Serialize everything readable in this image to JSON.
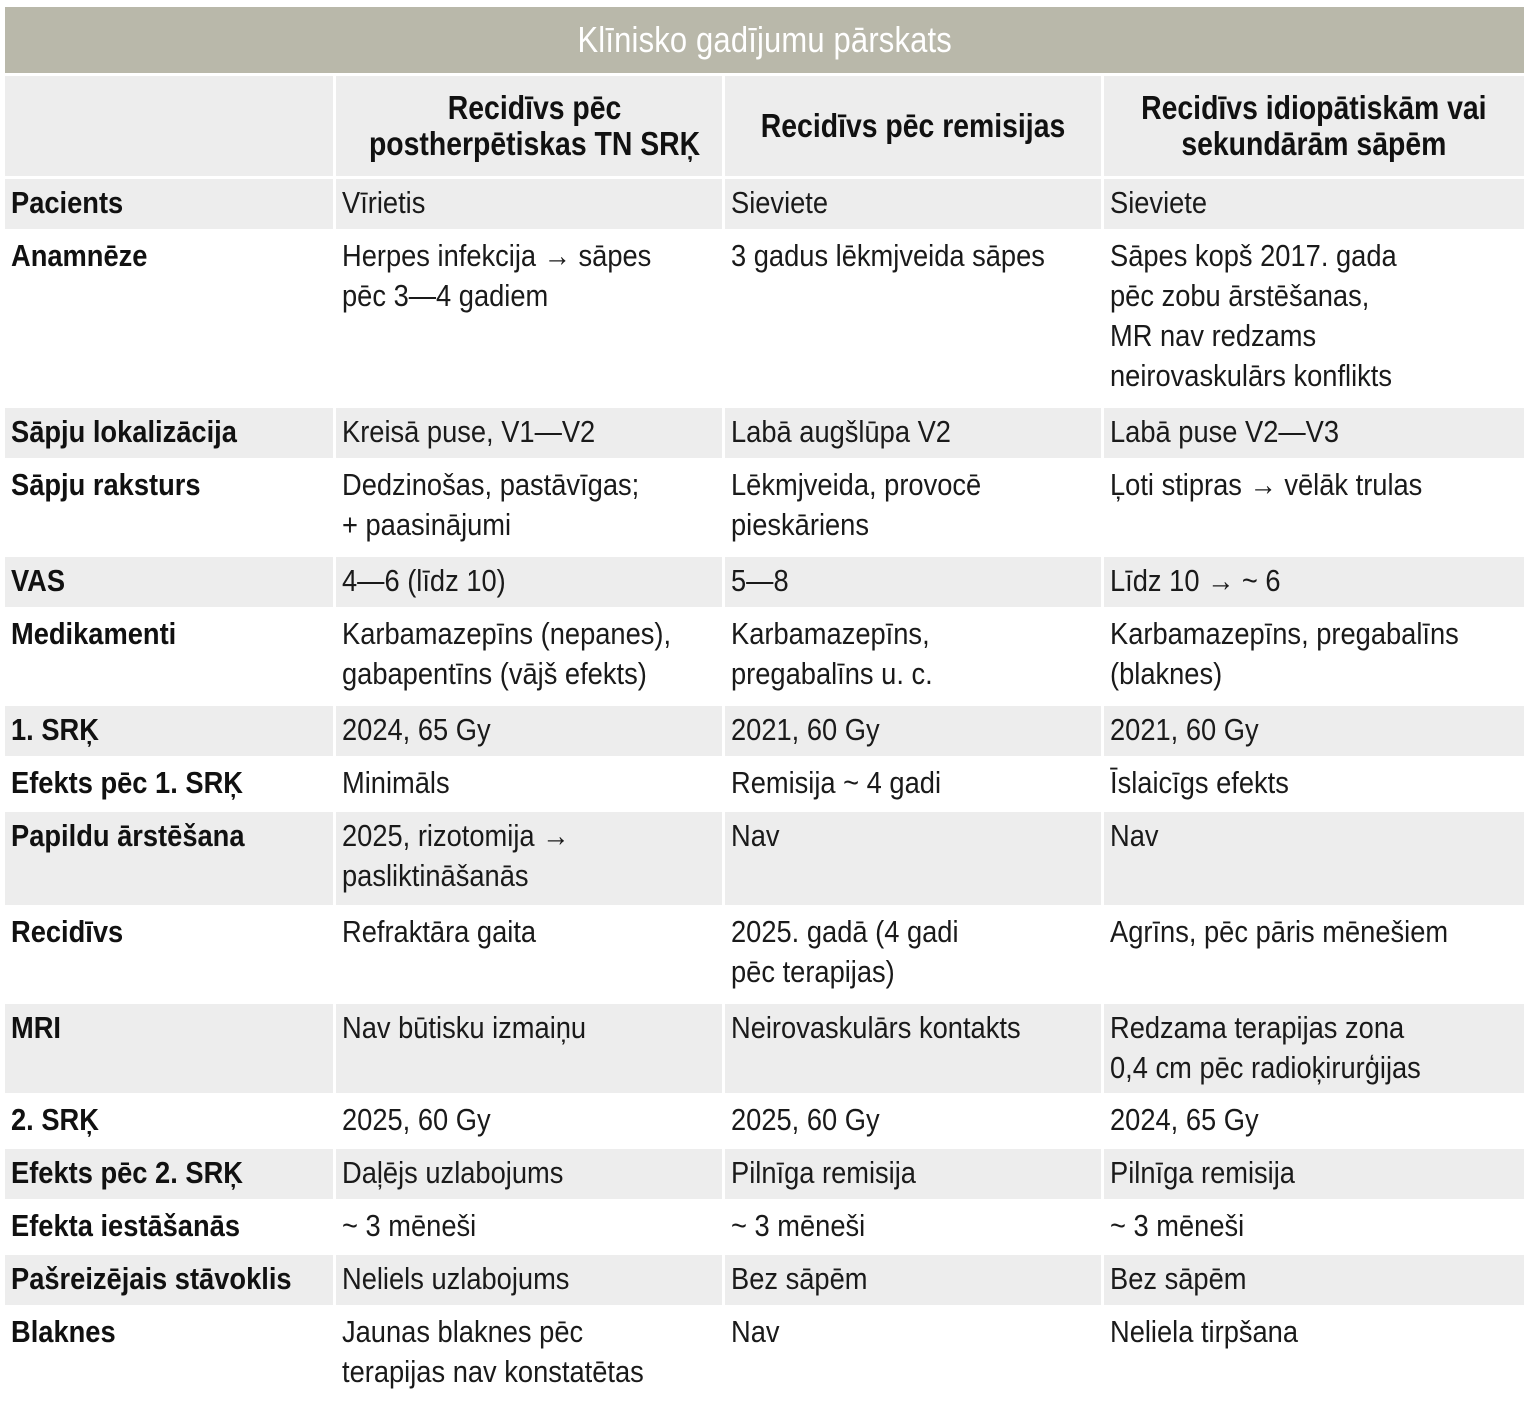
{
  "title": "Klīnisko gadījumu pārskats",
  "columns": [
    "",
    [
      "Recidīvs pēc",
      "postherpētiskas TN SRĶ"
    ],
    [
      "Recidīvs pēc remisijas"
    ],
    [
      "Recidīvs idiopātiskām vai",
      "sekundārām sāpēm"
    ]
  ],
  "rows": [
    {
      "label": "Pacients",
      "cells": [
        [
          "Vīrietis"
        ],
        [
          "Sieviete"
        ],
        [
          "Sieviete"
        ]
      ]
    },
    {
      "label": "Anamnēze",
      "cells": [
        [
          "Herpes infekcija → sāpes",
          "pēc 3—4 gadiem"
        ],
        [
          "3 gadus lēkmjveida sāpes"
        ],
        [
          "Sāpes kopš 2017. gada",
          "pēc zobu ārstēšanas,",
          "MR nav redzams",
          "neirovaskulārs konflikts"
        ]
      ]
    },
    {
      "label": "Sāpju lokalizācija",
      "cells": [
        [
          "Kreisā puse, V1—V2"
        ],
        [
          "Labā augšlūpa V2"
        ],
        [
          "Labā puse V2—V3"
        ]
      ]
    },
    {
      "label": "Sāpju raksturs",
      "cells": [
        [
          "Dedzinošas, pastāvīgas;",
          "+ paasinājumi"
        ],
        [
          "Lēkmjveida, provocē",
          "pieskāriens"
        ],
        [
          "Ļoti stipras → vēlāk trulas"
        ]
      ]
    },
    {
      "label": "VAS",
      "cells": [
        [
          "4—6 (līdz 10)"
        ],
        [
          "5—8"
        ],
        [
          "Līdz 10 → ~ 6"
        ]
      ]
    },
    {
      "label": "Medikamenti",
      "cells": [
        [
          "Karbamazepīns (nepanes),",
          "gabapentīns (vājš efekts)"
        ],
        [
          "Karbamazepīns,",
          "pregabalīns u. c."
        ],
        [
          "Karbamazepīns, pregabalīns",
          "(blaknes)"
        ]
      ]
    },
    {
      "label": "1. SRĶ",
      "cells": [
        [
          "2024, 65 Gy"
        ],
        [
          "2021, 60 Gy"
        ],
        [
          "2021, 60 Gy"
        ]
      ]
    },
    {
      "label": "Efekts pēc 1. SRĶ",
      "cells": [
        [
          "Minimāls"
        ],
        [
          "Remisija ~ 4 gadi"
        ],
        [
          "Īslaicīgs efekts"
        ]
      ]
    },
    {
      "label": "Papildu ārstēšana",
      "cells": [
        [
          "2025, rizotomija →",
          "pasliktināšanās"
        ],
        [
          "Nav"
        ],
        [
          "Nav"
        ]
      ]
    },
    {
      "label": "Recidīvs",
      "cells": [
        [
          "Refraktāra gaita"
        ],
        [
          "2025. gadā (4 gadi",
          "pēc terapijas)"
        ],
        [
          "Agrīns, pēc pāris mēnešiem"
        ]
      ]
    },
    {
      "label": "MRI",
      "cells": [
        [
          "Nav būtisku izmaiņu"
        ],
        [
          "Neirovaskulārs kontakts"
        ],
        [
          "Redzama terapijas zona",
          "0,4 cm pēc radioķirurģijas"
        ]
      ]
    },
    {
      "label": "2. SRĶ",
      "cells": [
        [
          "2025, 60 Gy"
        ],
        [
          "2025, 60 Gy"
        ],
        [
          "2024, 65 Gy"
        ]
      ]
    },
    {
      "label": "Efekts pēc 2. SRĶ",
      "cells": [
        [
          "Daļējs uzlabojums"
        ],
        [
          "Pilnīga remisija"
        ],
        [
          "Pilnīga remisija"
        ]
      ]
    },
    {
      "label": "Efekta iestāšanās",
      "cells": [
        [
          "~ 3 mēneši"
        ],
        [
          "~ 3 mēneši"
        ],
        [
          "~ 3 mēneši"
        ]
      ]
    },
    {
      "label": "Pašreizējais stāvoklis",
      "cells": [
        [
          "Neliels uzlabojums"
        ],
        [
          "Bez sāpēm"
        ],
        [
          "Bez sāpēm"
        ]
      ]
    },
    {
      "label": "Blaknes",
      "cells": [
        [
          "Jaunas blaknes pēc",
          "terapijas nav konstatētas"
        ],
        [
          "Nav"
        ],
        [
          "Neliela tirpšana"
        ]
      ]
    }
  ]
}
